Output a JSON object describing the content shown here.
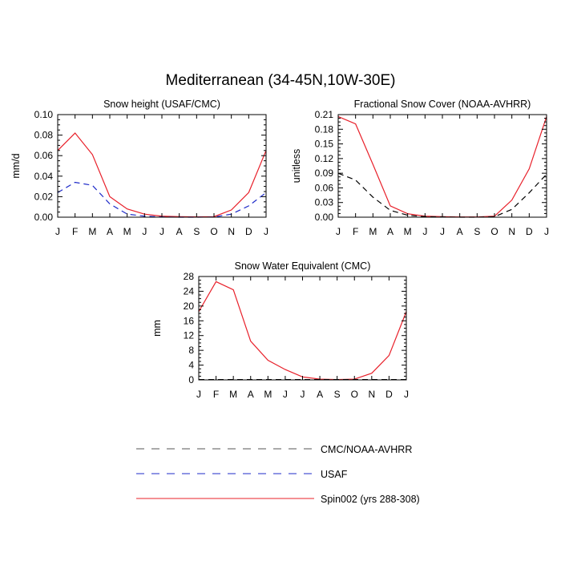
{
  "title": "Mediterranean (34-45N,10W-30E)",
  "chart_data": [
    {
      "type": "line",
      "title": "Snow height (USAF/CMC)",
      "xlabel": "",
      "ylabel": "mm/d",
      "categories": [
        "J",
        "F",
        "M",
        "A",
        "M",
        "J",
        "J",
        "A",
        "S",
        "O",
        "N",
        "D",
        "J"
      ],
      "ylim": [
        0,
        0.1
      ],
      "yticks": [
        0,
        0.02,
        0.04,
        0.06,
        0.08,
        0.1
      ],
      "ytick_labels": [
        "0.00",
        "0.02",
        "0.04",
        "0.06",
        "0.08",
        "0.10"
      ],
      "series": [
        {
          "name": "Spin002 (yrs 288-308)",
          "color": "#e8202a",
          "dash": "solid",
          "values": [
            0.065,
            0.082,
            0.061,
            0.02,
            0.008,
            0.003,
            0.001,
            0.0005,
            0.0003,
            0.0005,
            0.007,
            0.024,
            0.065
          ]
        },
        {
          "name": "USAF",
          "color": "#1f2bc9",
          "dash": "dashed",
          "values": [
            0.024,
            0.034,
            0.031,
            0.013,
            0.003,
            0.001,
            0.0002,
            0.0,
            0.0,
            0.0001,
            0.003,
            0.011,
            0.024
          ]
        }
      ]
    },
    {
      "type": "line",
      "title": "Fractional Snow Cover (NOAA-AVHRR)",
      "xlabel": "",
      "ylabel": "unitless",
      "categories": [
        "J",
        "F",
        "M",
        "A",
        "M",
        "J",
        "J",
        "A",
        "S",
        "O",
        "N",
        "D",
        "J"
      ],
      "ylim": [
        0,
        0.21
      ],
      "yticks": [
        0,
        0.03,
        0.06,
        0.09,
        0.12,
        0.15,
        0.18,
        0.21
      ],
      "ytick_labels": [
        "0.00",
        "0.03",
        "0.06",
        "0.09",
        "0.12",
        "0.15",
        "0.18",
        "0.21"
      ],
      "series": [
        {
          "name": "Spin002 (yrs 288-308)",
          "color": "#e8202a",
          "dash": "solid",
          "values": [
            0.206,
            0.191,
            0.108,
            0.023,
            0.007,
            0.002,
            0.001,
            0.0005,
            0.0005,
            0.002,
            0.035,
            0.099,
            0.206
          ]
        },
        {
          "name": "CMC/NOAA-AVHRR",
          "color": "#000000",
          "dash": "dashed",
          "values": [
            0.09,
            0.076,
            0.041,
            0.014,
            0.004,
            0.001,
            0.0005,
            0.0,
            0.0,
            0.001,
            0.016,
            0.05,
            0.088
          ]
        }
      ]
    },
    {
      "type": "line",
      "title": "Snow Water Equivalent (CMC)",
      "xlabel": "",
      "ylabel": "mm",
      "categories": [
        "J",
        "F",
        "M",
        "A",
        "M",
        "J",
        "J",
        "A",
        "S",
        "O",
        "N",
        "D",
        "J"
      ],
      "ylim": [
        0,
        28
      ],
      "yticks": [
        0,
        4,
        8,
        12,
        16,
        20,
        24,
        28
      ],
      "ytick_labels": [
        "0",
        "4",
        "8",
        "12",
        "16",
        "20",
        "24",
        "28"
      ],
      "series": [
        {
          "name": "Spin002 (yrs 288-308)",
          "color": "#e8202a",
          "dash": "solid",
          "values": [
            18.5,
            26.6,
            24.4,
            10.5,
            5.3,
            2.8,
            0.8,
            0.2,
            0.1,
            0.2,
            1.8,
            6.6,
            18.5
          ]
        },
        {
          "name": "CMC/NOAA-AVHRR",
          "color": "#000000",
          "dash": "dashed",
          "values": [
            0.1,
            0.1,
            0.1,
            0.1,
            0.1,
            0.1,
            0.1,
            0.1,
            0.1,
            0.1,
            0.1,
            0.1,
            0.1
          ]
        }
      ]
    }
  ],
  "legend": [
    {
      "label": "CMC/NOAA-AVHRR",
      "color": "#000000",
      "dash": "dashed"
    },
    {
      "label": "USAF",
      "color": "#1f2bc9",
      "dash": "dashed"
    },
    {
      "label": "Spin002 (yrs 288-308)",
      "color": "#e8202a",
      "dash": "solid"
    }
  ]
}
